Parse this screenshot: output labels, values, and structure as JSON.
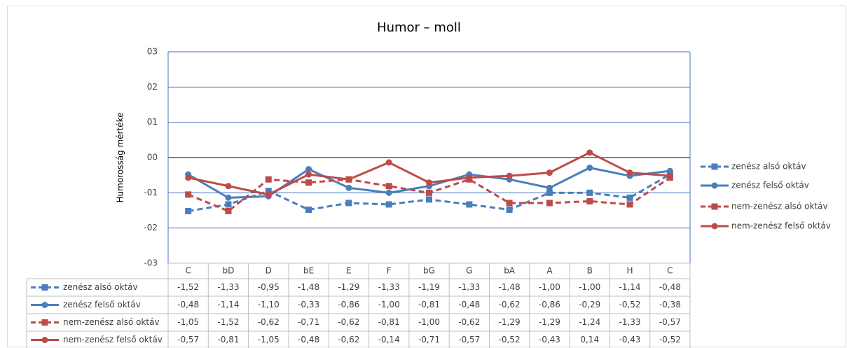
{
  "chart_data": {
    "type": "line",
    "title": "Humor – moll",
    "ylabel": "Humorosság mértéke",
    "categories": [
      "C",
      "bD",
      "D",
      "bE",
      "E",
      "F",
      "bG",
      "G",
      "bA",
      "A",
      "B",
      "H",
      "C"
    ],
    "ylim": [
      -3,
      3
    ],
    "yticks": [
      {
        "value": -3,
        "label": "-03"
      },
      {
        "value": -2,
        "label": "-02"
      },
      {
        "value": -1,
        "label": "-01"
      },
      {
        "value": 0,
        "label": "00"
      },
      {
        "value": 1,
        "label": "01"
      },
      {
        "value": 2,
        "label": "02"
      },
      {
        "value": 3,
        "label": "03"
      }
    ],
    "grid": true,
    "legend": "right",
    "series": [
      {
        "name": "zenész alsó oktáv",
        "color": "#4a7ebb",
        "dash": true,
        "marker": "square",
        "values": [
          -1.52,
          -1.33,
          -0.95,
          -1.48,
          -1.29,
          -1.33,
          -1.19,
          -1.33,
          -1.48,
          -1.0,
          -1.0,
          -1.14,
          -0.48
        ],
        "value_labels": [
          "-1,52",
          "-1,33",
          "-0,95",
          "-1,48",
          "-1,29",
          "-1,33",
          "-1,19",
          "-1,33",
          "-1,48",
          "-1,00",
          "-1,00",
          "-1,14",
          "-0,48"
        ]
      },
      {
        "name": "zenész felső oktáv",
        "color": "#4a7ebb",
        "dash": false,
        "marker": "circle",
        "values": [
          -0.48,
          -1.14,
          -1.1,
          -0.33,
          -0.86,
          -1.0,
          -0.81,
          -0.48,
          -0.62,
          -0.86,
          -0.29,
          -0.52,
          -0.38
        ],
        "value_labels": [
          "-0,48",
          "-1,14",
          "-1,10",
          "-0,33",
          "-0,86",
          "-1,00",
          "-0,81",
          "-0,48",
          "-0,62",
          "-0,86",
          "-0,29",
          "-0,52",
          "-0,38"
        ]
      },
      {
        "name": "nem-zenész alsó oktáv",
        "color": "#be4b48",
        "dash": true,
        "marker": "square",
        "values": [
          -1.05,
          -1.52,
          -0.62,
          -0.71,
          -0.62,
          -0.81,
          -1.0,
          -0.62,
          -1.29,
          -1.29,
          -1.24,
          -1.33,
          -0.57
        ],
        "value_labels": [
          "-1,05",
          "-1,52",
          "-0,62",
          "-0,71",
          "-0,62",
          "-0,81",
          "-1,00",
          "-0,62",
          "-1,29",
          "-1,29",
          "-1,24",
          "-1,33",
          "-0,57"
        ]
      },
      {
        "name": "nem-zenész felső oktáv",
        "color": "#be4b48",
        "dash": false,
        "marker": "circle",
        "values": [
          -0.57,
          -0.81,
          -1.05,
          -0.48,
          -0.62,
          -0.14,
          -0.71,
          -0.57,
          -0.52,
          -0.43,
          0.14,
          -0.43,
          -0.52
        ],
        "value_labels": [
          "-0,57",
          "-0,81",
          "-1,05",
          "-0,48",
          "-0,62",
          "-0,14",
          "-0,71",
          "-0,57",
          "-0,52",
          "-0,43",
          "0,14",
          "-0,43",
          "-0,52"
        ]
      }
    ]
  }
}
